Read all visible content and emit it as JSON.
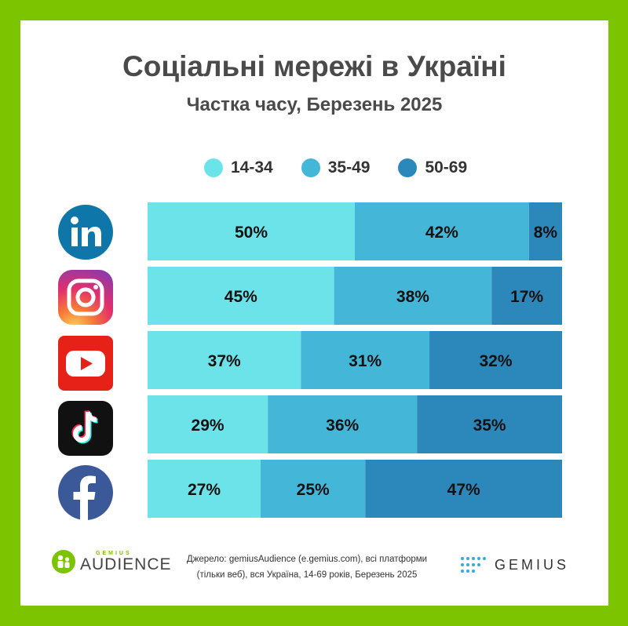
{
  "title": "Соціальні мережі в Україні",
  "subtitle": "Частка часу, Березень 2025",
  "colors": {
    "background": "#7cc300",
    "seg1": "#6be3e9",
    "seg2": "#44b6d8",
    "seg3": "#2c88bb"
  },
  "chart_data": {
    "type": "bar",
    "orientation": "horizontal-stacked-100",
    "categories": [
      "LinkedIn",
      "Instagram",
      "YouTube",
      "TikTok",
      "Facebook"
    ],
    "series": [
      {
        "name": "14-34",
        "values": [
          50,
          45,
          37,
          29,
          27
        ]
      },
      {
        "name": "35-49",
        "values": [
          42,
          38,
          31,
          36,
          25
        ]
      },
      {
        "name": "50-69",
        "values": [
          8,
          17,
          32,
          35,
          47
        ]
      }
    ],
    "unit": "%",
    "legend_position": "top",
    "grid": false
  },
  "footer": {
    "audience_small": "GEMIUS",
    "audience_big": "AUDIENCE",
    "source_line1": "Джерело: gemiusAudience (e.gemius.com), всі платформи",
    "source_line2": "(тільки веб), вся Україна, 14-69 років, Березень 2025",
    "gemius": "GEMIUS"
  },
  "icons": [
    "linkedin-icon",
    "instagram-icon",
    "youtube-icon",
    "tiktok-icon",
    "facebook-icon"
  ]
}
